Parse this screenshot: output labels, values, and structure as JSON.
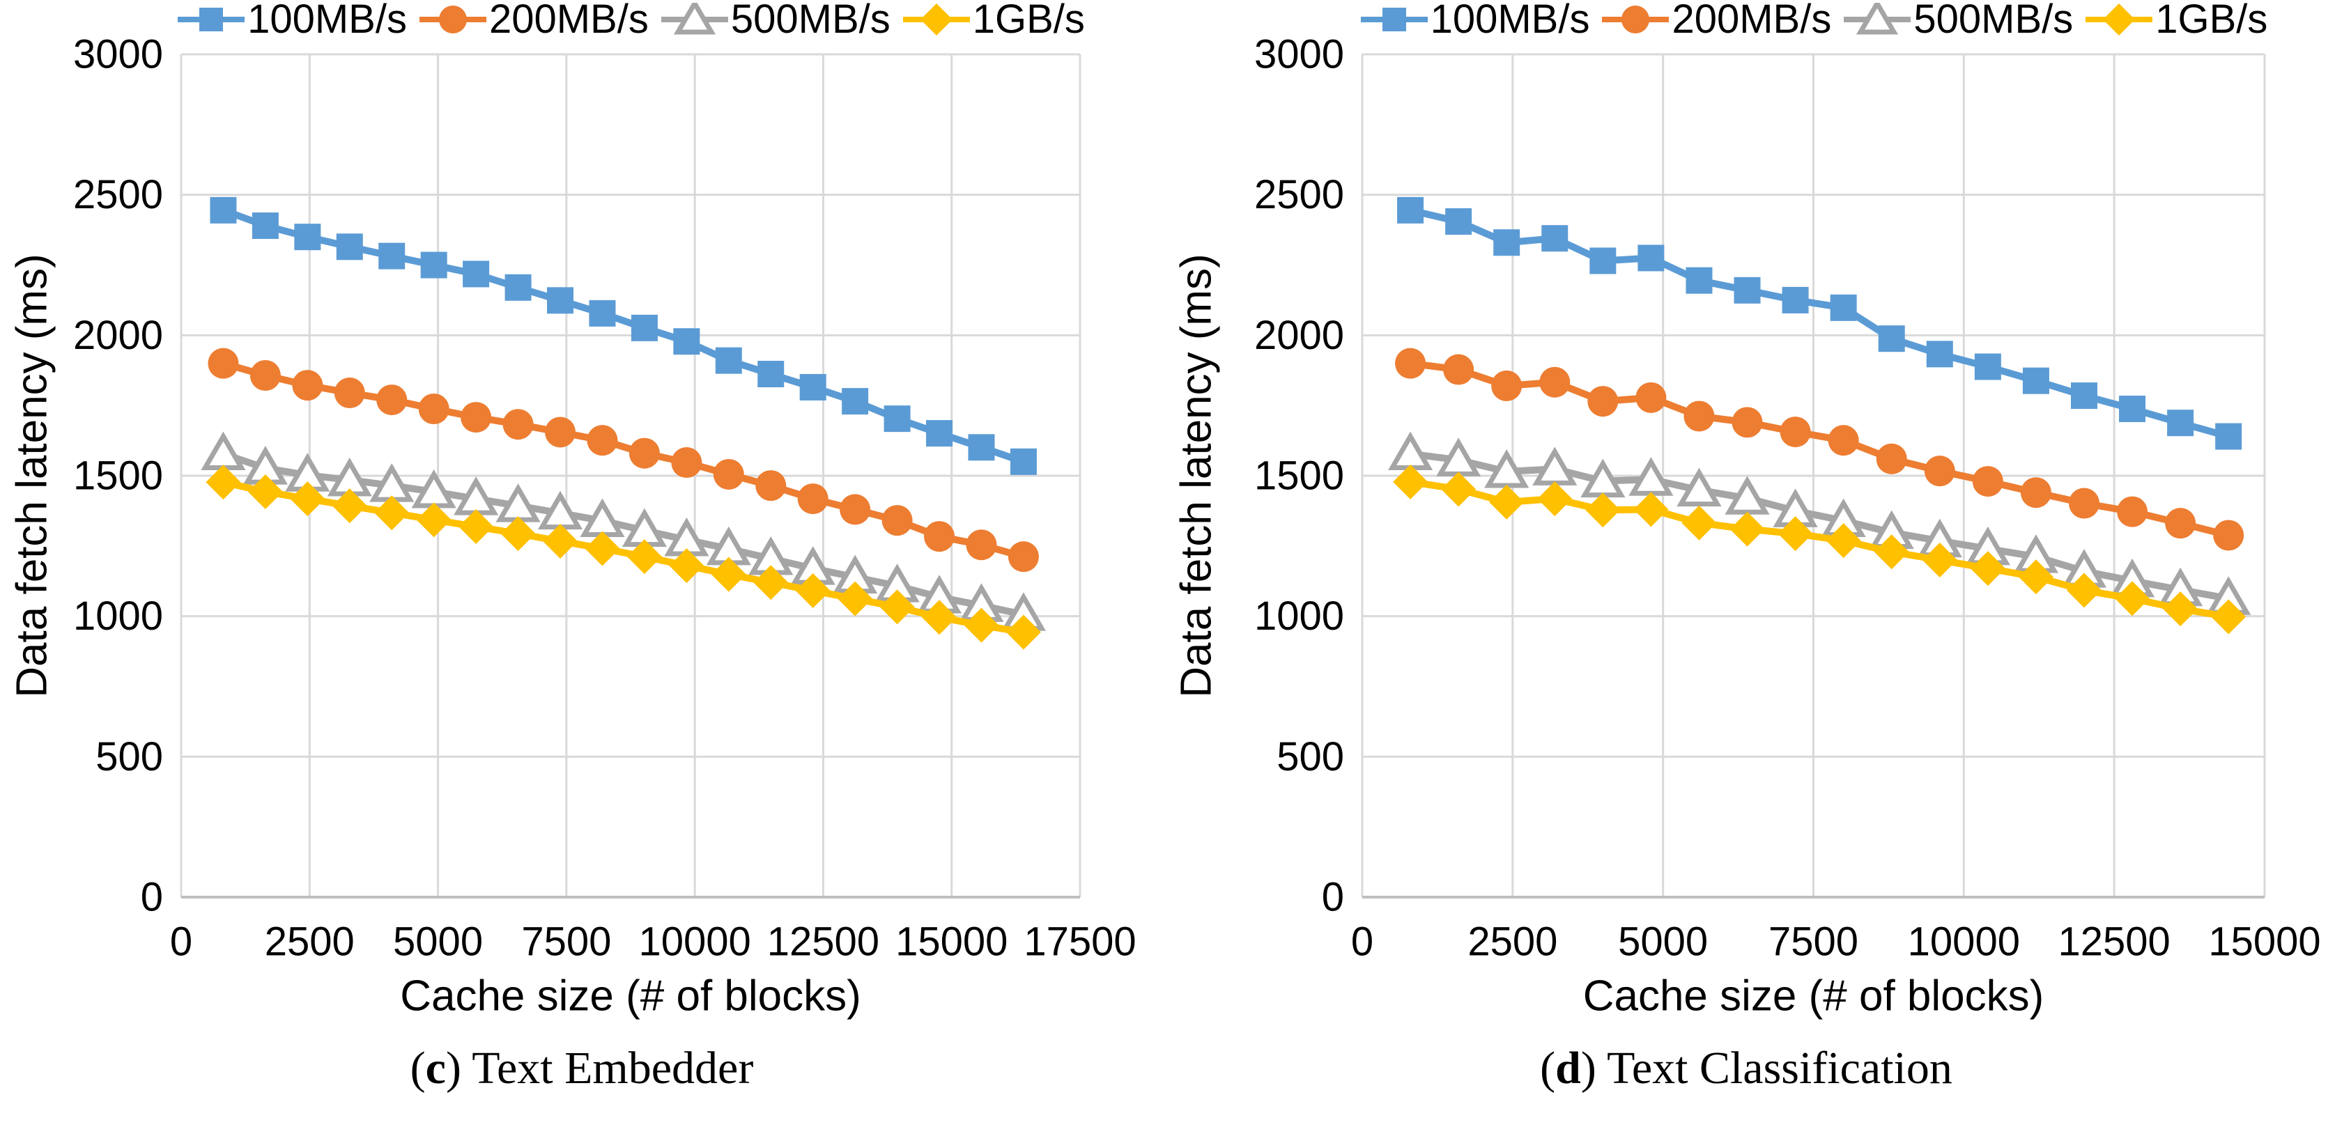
{
  "figure": {
    "grid_color": "#D9D9D9",
    "axis_color": "#BFBFBF",
    "text_color": "#000000",
    "background": "#FFFFFF",
    "legend_labels": [
      "100MB/s",
      "200MB/s",
      "500MB/s",
      "1GB/s"
    ]
  },
  "chart_data": [
    {
      "type": "line",
      "caption_letter": "c",
      "caption_title": "Text Embedder",
      "xlabel": "Cache size (# of blocks)",
      "ylabel": "Data fetch latency (ms)",
      "legend_position": "top",
      "grid": true,
      "x_axis": {
        "min": 0,
        "max": 17500,
        "ticks": [
          0,
          2500,
          5000,
          7500,
          10000,
          12500,
          15000,
          17500
        ]
      },
      "y_axis": {
        "min": 0,
        "max": 3000,
        "ticks": [
          0,
          500,
          1000,
          1500,
          2000,
          2500,
          3000
        ]
      },
      "x": [
        820,
        1640,
        2460,
        3280,
        4100,
        4920,
        5740,
        6560,
        7380,
        8200,
        9020,
        9840,
        10660,
        11480,
        12300,
        13120,
        13940,
        14760,
        15580,
        16400
      ],
      "series": [
        {
          "name": "100MB/s",
          "color": "#5B9BD5",
          "marker": "square",
          "values": [
            2445,
            2390,
            2350,
            2315,
            2282,
            2250,
            2218,
            2170,
            2124,
            2078,
            2026,
            1978,
            1910,
            1862,
            1815,
            1765,
            1703,
            1651,
            1601,
            1550
          ]
        },
        {
          "name": "200MB/s",
          "color": "#ED7D31",
          "marker": "circle",
          "values": [
            1900,
            1857,
            1822,
            1795,
            1770,
            1738,
            1708,
            1683,
            1655,
            1626,
            1580,
            1547,
            1505,
            1465,
            1418,
            1380,
            1341,
            1284,
            1254,
            1212
          ]
        },
        {
          "name": "500MB/s",
          "color": "#A5A5A5",
          "marker": "triangle",
          "values": [
            1578,
            1527,
            1502,
            1485,
            1465,
            1443,
            1418,
            1393,
            1367,
            1340,
            1305,
            1272,
            1240,
            1205,
            1170,
            1139,
            1108,
            1068,
            1038,
            1006
          ]
        },
        {
          "name": "1GB/s",
          "color": "#FFC000",
          "marker": "diamond",
          "values": [
            1477,
            1443,
            1418,
            1393,
            1368,
            1343,
            1319,
            1294,
            1267,
            1241,
            1212,
            1180,
            1149,
            1120,
            1091,
            1062,
            1033,
            996,
            968,
            943
          ]
        }
      ]
    },
    {
      "type": "line",
      "caption_letter": "d",
      "caption_title": "Text Classification",
      "xlabel": "Cache size (# of blocks)",
      "ylabel": "Data fetch latency (ms)",
      "legend_position": "top",
      "grid": true,
      "x_axis": {
        "min": 0,
        "max": 15000,
        "ticks": [
          0,
          2500,
          5000,
          7500,
          10000,
          12500,
          15000
        ]
      },
      "y_axis": {
        "min": 0,
        "max": 3000,
        "ticks": [
          0,
          500,
          1000,
          1500,
          2000,
          2500,
          3000
        ]
      },
      "x": [
        800,
        1600,
        2400,
        3200,
        4000,
        4800,
        5600,
        6400,
        7200,
        8000,
        8800,
        9600,
        10400,
        11200,
        12000,
        12800,
        13600,
        14400
      ],
      "series": [
        {
          "name": "100MB/s",
          "color": "#5B9BD5",
          "marker": "square",
          "values": [
            2445,
            2405,
            2330,
            2345,
            2265,
            2275,
            2195,
            2160,
            2125,
            2098,
            1988,
            1933,
            1888,
            1838,
            1785,
            1738,
            1688,
            1640
          ]
        },
        {
          "name": "200MB/s",
          "color": "#ED7D31",
          "marker": "circle",
          "values": [
            1900,
            1878,
            1820,
            1833,
            1765,
            1778,
            1712,
            1690,
            1656,
            1626,
            1560,
            1517,
            1480,
            1440,
            1402,
            1372,
            1331,
            1288
          ]
        },
        {
          "name": "500MB/s",
          "color": "#A5A5A5",
          "marker": "triangle",
          "values": [
            1578,
            1556,
            1515,
            1524,
            1481,
            1487,
            1449,
            1420,
            1375,
            1340,
            1298,
            1268,
            1240,
            1212,
            1160,
            1126,
            1094,
            1063
          ]
        },
        {
          "name": "1GB/s",
          "color": "#FFC000",
          "marker": "diamond",
          "values": [
            1478,
            1452,
            1406,
            1418,
            1378,
            1380,
            1332,
            1310,
            1294,
            1269,
            1229,
            1200,
            1170,
            1140,
            1092,
            1063,
            1026,
            998
          ]
        }
      ]
    }
  ]
}
